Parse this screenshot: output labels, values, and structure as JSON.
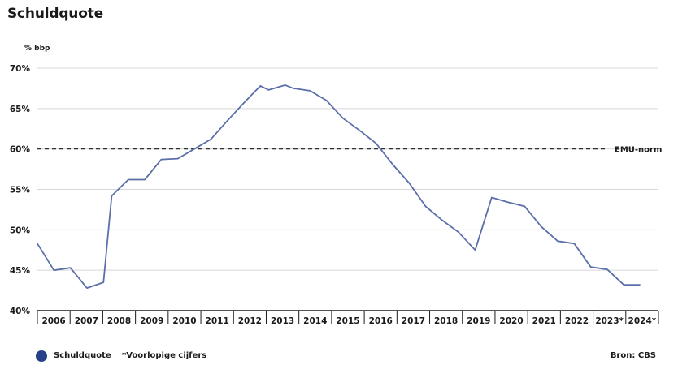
{
  "chart_data": {
    "type": "line",
    "title": "Schuldquote",
    "ylabel": "% bbp",
    "ylim": [
      40,
      70
    ],
    "ytick_labels": [
      "40%",
      "45%",
      "50%",
      "55%",
      "60%",
      "65%",
      "70%"
    ],
    "ytick_values": [
      40,
      45,
      50,
      55,
      60,
      65,
      70
    ],
    "xlim": [
      2006,
      2024.8
    ],
    "xtick_labels": [
      "2006",
      "2007",
      "2008",
      "2009",
      "2010",
      "2011",
      "2012",
      "2013",
      "2014",
      "2015",
      "2016",
      "2017",
      "2018",
      "2019",
      "2020",
      "2021",
      "2022",
      "2023*",
      "2024*"
    ],
    "grid": true,
    "series": [
      {
        "name": "Schuldquote",
        "color": "#5b6fa8",
        "x": [
          2006.0,
          2006.5,
          2007.0,
          2007.5,
          2008.0,
          2008.25,
          2008.75,
          2009.25,
          2009.75,
          2010.25,
          2010.75,
          2011.25,
          2011.75,
          2012.25,
          2012.75,
          2013.0,
          2013.5,
          2013.75,
          2014.25,
          2014.75,
          2015.25,
          2015.75,
          2016.25,
          2016.75,
          2017.25,
          2017.75,
          2018.25,
          2018.75,
          2019.25,
          2019.75,
          2020.25,
          2020.75,
          2021.25,
          2021.75,
          2022.25,
          2022.75,
          2023.25,
          2023.75,
          2024.25
        ],
        "values": [
          48.3,
          45.0,
          45.3,
          42.8,
          43.5,
          54.2,
          56.2,
          56.2,
          58.7,
          58.8,
          60.0,
          61.2,
          63.5,
          65.7,
          67.8,
          67.3,
          67.9,
          67.5,
          67.2,
          66.0,
          63.8,
          62.3,
          60.7,
          58.1,
          55.8,
          52.9,
          51.2,
          49.7,
          47.5,
          54.0,
          53.4,
          52.9,
          50.4,
          48.6,
          48.3,
          45.4,
          45.1,
          43.2,
          43.2
        ]
      }
    ],
    "reference_line": {
      "value": 60,
      "label": "EMU-norm",
      "style": "dashed"
    },
    "legend": {
      "position": "bottom-left",
      "entries": [
        "Schuldquote"
      ]
    },
    "note": "*Voorlopige cijfers",
    "source": "Bron: CBS"
  }
}
